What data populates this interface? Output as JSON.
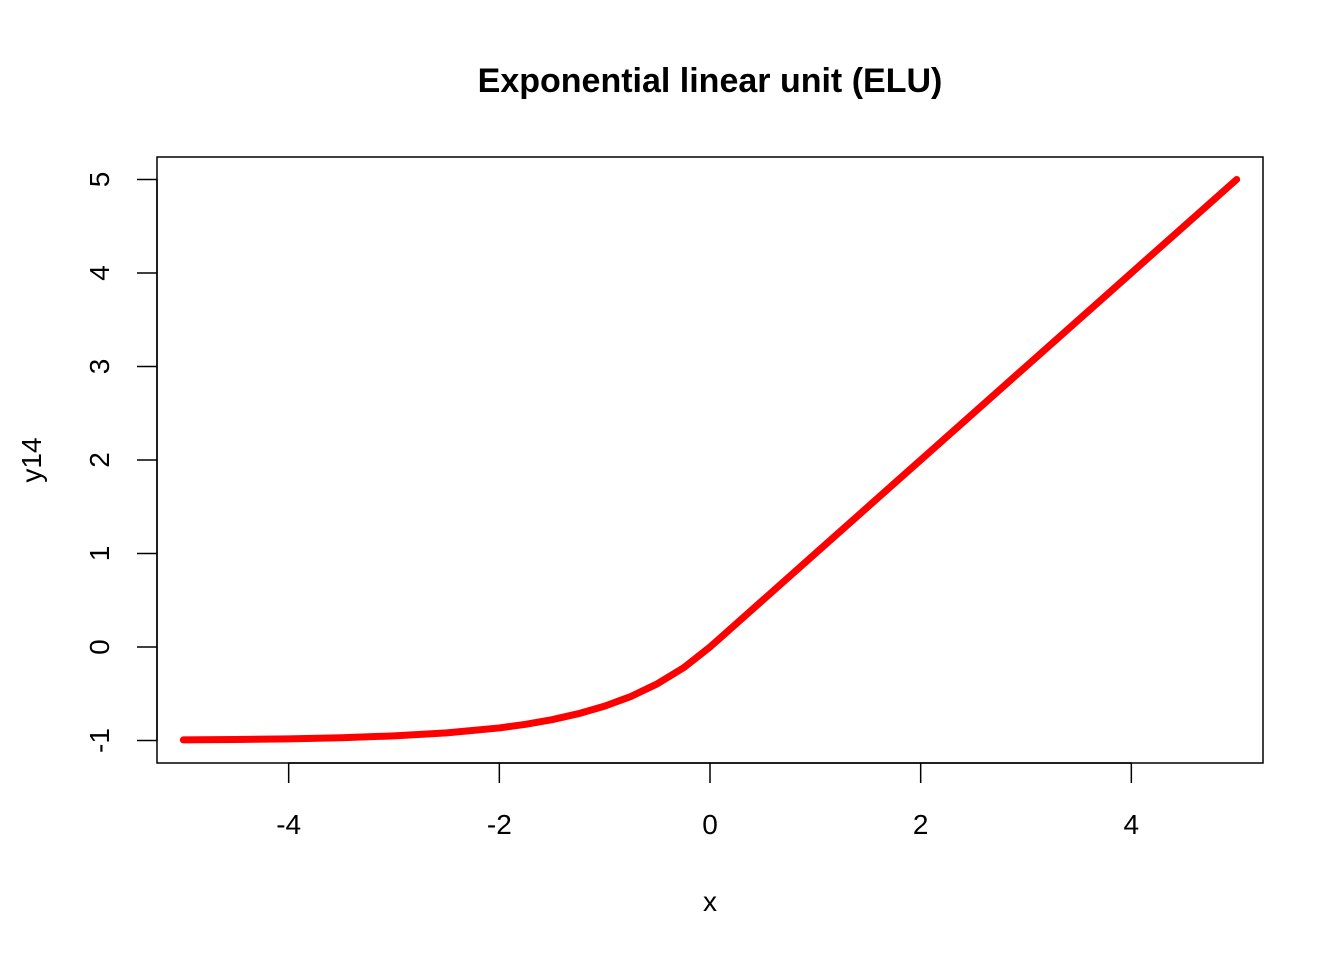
{
  "chart_data": {
    "type": "line",
    "title": "Exponential linear unit (ELU)",
    "xlabel": "x",
    "ylabel": "y14",
    "xlim": [
      -5.25,
      5.25
    ],
    "ylim": [
      -1.24,
      5.24
    ],
    "x_ticks": [
      -4,
      -2,
      0,
      2,
      4
    ],
    "x_tick_labels": [
      "-4",
      "-2",
      "0",
      "2",
      "4"
    ],
    "y_ticks": [
      -1,
      0,
      1,
      2,
      3,
      4,
      5
    ],
    "y_tick_labels": [
      "-1",
      "0",
      "1",
      "2",
      "3",
      "4",
      "5"
    ],
    "grid": false,
    "series": [
      {
        "color": "#ff0000",
        "x": [
          -5,
          -4.5,
          -4,
          -3.5,
          -3,
          -2.5,
          -2,
          -1.75,
          -1.5,
          -1.25,
          -1,
          -0.75,
          -0.5,
          -0.25,
          0,
          0.5,
          1,
          1.5,
          2,
          2.5,
          3,
          3.5,
          4,
          4.5,
          5
        ],
        "y": [
          -0.993,
          -0.989,
          -0.982,
          -0.97,
          -0.95,
          -0.918,
          -0.865,
          -0.826,
          -0.777,
          -0.713,
          -0.632,
          -0.528,
          -0.393,
          -0.221,
          0,
          0.5,
          1,
          1.5,
          2,
          2.5,
          3,
          3.5,
          4,
          4.5,
          5
        ]
      }
    ]
  }
}
